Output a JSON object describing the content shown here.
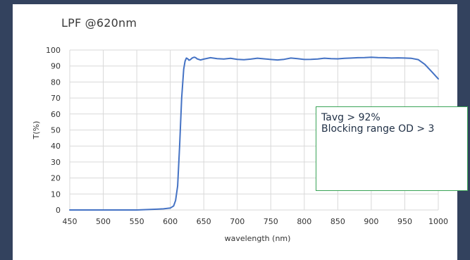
{
  "colors": {
    "frame": "#33425e",
    "panel": "#ffffff",
    "line": "#4472c4",
    "gridline": "#d9d9d9",
    "annotation_border": "#3aa357",
    "annotation_text": "#1f2f45"
  },
  "annotation": {
    "lines": [
      "Tavg > 92%",
      "Blocking range OD > 3"
    ]
  },
  "chart_data": {
    "type": "line",
    "title": "LPF @620nm",
    "xlabel": "wavelength (nm)",
    "ylabel": "T(%)",
    "xlim": [
      450,
      1000
    ],
    "ylim": [
      0,
      100
    ],
    "x_ticks": [
      450,
      500,
      550,
      600,
      650,
      700,
      750,
      800,
      850,
      900,
      950,
      1000
    ],
    "y_ticks": [
      0,
      10,
      20,
      30,
      40,
      50,
      60,
      70,
      80,
      90,
      100
    ],
    "grid": {
      "vertical": true,
      "horizontal": true
    },
    "series": [
      {
        "x": [
          450,
          500,
          550,
          570,
          580,
          590,
          600,
          605,
          608,
          611,
          614,
          617,
          620,
          622,
          624,
          626,
          628,
          630,
          632,
          634,
          636,
          638,
          640,
          645,
          650,
          660,
          670,
          680,
          690,
          700,
          710,
          720,
          730,
          740,
          750,
          760,
          770,
          780,
          790,
          800,
          810,
          820,
          830,
          840,
          850,
          860,
          870,
          880,
          890,
          900,
          910,
          920,
          930,
          940,
          950,
          960,
          970,
          980,
          990,
          1000
        ],
        "y": [
          0,
          0,
          0,
          0.3,
          0.5,
          0.7,
          1.2,
          2.5,
          6,
          15,
          40,
          70,
          88,
          93,
          95,
          94.5,
          93.6,
          94,
          94.8,
          95.3,
          95.5,
          95.2,
          94.5,
          93.8,
          94.3,
          95.2,
          94.6,
          94.4,
          94.8,
          94.2,
          93.9,
          94.3,
          94.9,
          94.5,
          94.1,
          93.8,
          94.2,
          95,
          94.6,
          94.1,
          94.2,
          94.4,
          94.9,
          94.6,
          94.5,
          94.8,
          95,
          95.2,
          95.3,
          95.5,
          95.3,
          95.2,
          95,
          95.1,
          95,
          94.8,
          94,
          91,
          86.5,
          82
        ]
      }
    ]
  }
}
